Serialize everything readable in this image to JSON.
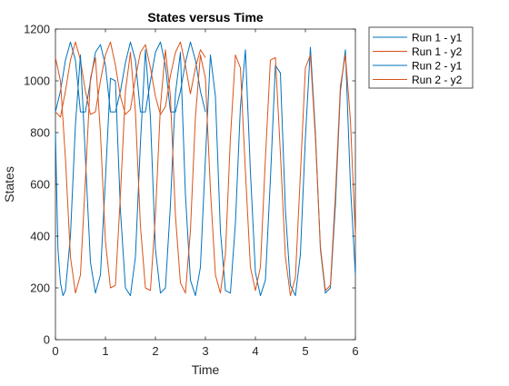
{
  "chart_data": {
    "type": "line",
    "title": "States versus Time",
    "xlabel": "Time",
    "ylabel": "States",
    "xlim": [
      0,
      6
    ],
    "ylim": [
      0,
      1200
    ],
    "xticks": [
      0,
      1,
      2,
      3,
      4,
      5,
      6
    ],
    "yticks": [
      0,
      200,
      400,
      600,
      800,
      1000,
      1200
    ],
    "grid": false,
    "legend_position": "top-right (outside axes)",
    "series": [
      {
        "name": "Run 1 - y1",
        "color": "#0072bd",
        "x": [
          0,
          0.1,
          0.2,
          0.3,
          0.4,
          0.5,
          0.6,
          0.7,
          0.8,
          0.9,
          1.0,
          1.1,
          1.2,
          1.3,
          1.4,
          1.5,
          1.6,
          1.7,
          1.8,
          1.9,
          2.0,
          2.1,
          2.2,
          2.3,
          2.4,
          2.5,
          2.6,
          2.7,
          2.8,
          2.9,
          3.0
        ],
        "y": [
          880,
          960,
          1080,
          1150,
          1080,
          880,
          880,
          1000,
          1110,
          1140,
          1060,
          880,
          880,
          960,
          1070,
          1150,
          1080,
          880,
          880,
          1000,
          1110,
          1150,
          1060,
          880,
          880,
          960,
          1070,
          1150,
          1080,
          960,
          880
        ]
      },
      {
        "name": "Run 1 - y2",
        "color": "#d95319",
        "x": [
          0,
          0.1,
          0.2,
          0.3,
          0.4,
          0.5,
          0.6,
          0.7,
          0.8,
          0.9,
          1.0,
          1.1,
          1.2,
          1.3,
          1.4,
          1.5,
          1.6,
          1.7,
          1.8,
          1.9,
          2.0,
          2.1,
          2.2,
          2.3,
          2.4,
          2.5,
          2.6,
          2.7,
          2.8,
          2.9,
          3.0
        ],
        "y": [
          880,
          860,
          960,
          1080,
          1150,
          1080,
          960,
          870,
          880,
          1000,
          1100,
          1150,
          1060,
          940,
          870,
          890,
          1010,
          1110,
          1140,
          1050,
          940,
          870,
          900,
          1020,
          1110,
          1150,
          1060,
          950,
          1050,
          1120,
          1090
        ]
      },
      {
        "name": "Run 2 - y1",
        "color": "#0072bd",
        "x": [
          0,
          0.05,
          0.1,
          0.15,
          0.2,
          0.3,
          0.4,
          0.5,
          0.6,
          0.7,
          0.8,
          0.9,
          1.0,
          1.1,
          1.2,
          1.3,
          1.4,
          1.5,
          1.6,
          1.7,
          1.8,
          1.9,
          2.0,
          2.1,
          2.2,
          2.3,
          2.4,
          2.5,
          2.6,
          2.7,
          2.8,
          2.9,
          3.0,
          3.1,
          3.2,
          3.3,
          3.4,
          3.5,
          3.6,
          3.7,
          3.8,
          3.9,
          4.0,
          4.1,
          4.2,
          4.3,
          4.4,
          4.5,
          4.6,
          4.7,
          4.8,
          4.9,
          5.0,
          5.1,
          5.2,
          5.3,
          5.4,
          5.5,
          5.6,
          5.7,
          5.8,
          5.9,
          6.0
        ],
        "y": [
          800,
          350,
          220,
          170,
          190,
          400,
          830,
          1100,
          700,
          300,
          180,
          250,
          620,
          1010,
          1000,
          500,
          200,
          170,
          320,
          760,
          1120,
          860,
          350,
          180,
          200,
          520,
          950,
          1110,
          560,
          230,
          170,
          280,
          700,
          1100,
          940,
          420,
          190,
          180,
          450,
          900,
          1120,
          650,
          260,
          170,
          230,
          620,
          1060,
          1030,
          500,
          210,
          170,
          330,
          780,
          1130,
          800,
          350,
          180,
          200,
          520,
          960,
          1120,
          600,
          250
        ]
      },
      {
        "name": "Run 2 - y2",
        "color": "#d95319",
        "x": [
          0,
          0.1,
          0.2,
          0.3,
          0.4,
          0.5,
          0.6,
          0.7,
          0.8,
          0.9,
          1.0,
          1.1,
          1.2,
          1.3,
          1.4,
          1.5,
          1.6,
          1.7,
          1.8,
          1.9,
          2.0,
          2.1,
          2.2,
          2.3,
          2.4,
          2.5,
          2.6,
          2.7,
          2.8,
          2.9,
          3.0,
          3.1,
          3.2,
          3.3,
          3.4,
          3.5,
          3.6,
          3.7,
          3.8,
          3.9,
          4.0,
          4.1,
          4.2,
          4.3,
          4.4,
          4.5,
          4.6,
          4.7,
          4.8,
          4.9,
          5.0,
          5.1,
          5.2,
          5.3,
          5.4,
          5.5,
          5.6,
          5.7,
          5.8,
          5.9,
          6.0
        ],
        "y": [
          1090,
          1000,
          700,
          320,
          180,
          250,
          620,
          1010,
          1090,
          800,
          380,
          200,
          210,
          560,
          960,
          1110,
          880,
          440,
          200,
          190,
          480,
          900,
          1120,
          940,
          480,
          220,
          180,
          420,
          860,
          1100,
          1010,
          580,
          250,
          180,
          330,
          780,
          1100,
          1050,
          650,
          280,
          190,
          280,
          700,
          1080,
          1090,
          720,
          320,
          170,
          240,
          640,
          1050,
          1100,
          780,
          360,
          190,
          210,
          560,
          980,
          1100,
          850,
          400
        ]
      }
    ]
  }
}
